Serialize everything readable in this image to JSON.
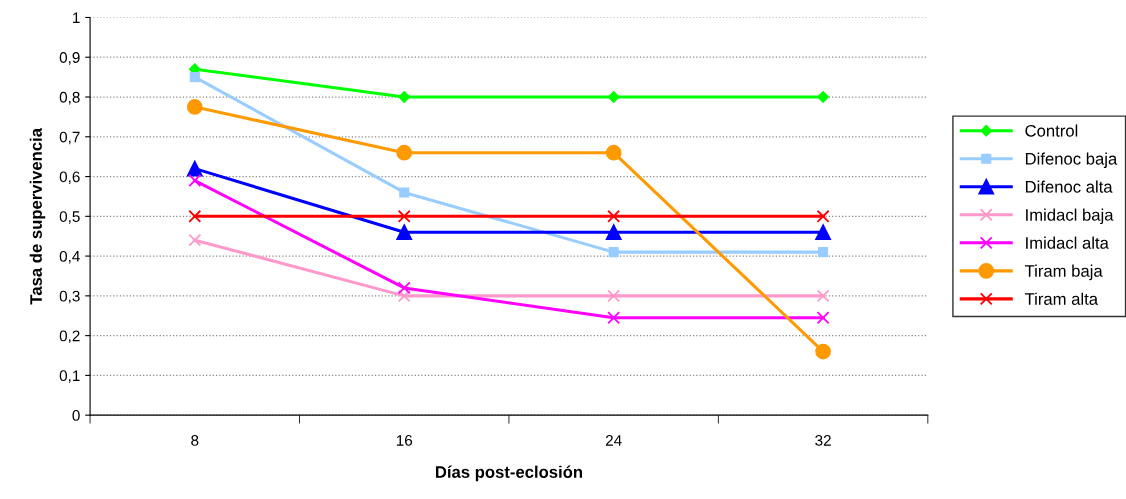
{
  "chart_data": {
    "type": "line",
    "xlabel": "Días post-eclosión",
    "ylabel": "Tasa de supervivencia",
    "categories": [
      "8",
      "16",
      "24",
      "32"
    ],
    "series": [
      {
        "name": "Control",
        "color": "#00ff00",
        "marker": "diamond",
        "values": [
          0.87,
          0.8,
          0.8,
          0.8
        ]
      },
      {
        "name": "Difenoc baja",
        "color": "#99ccff",
        "marker": "square",
        "values": [
          0.85,
          0.56,
          0.41,
          0.41
        ]
      },
      {
        "name": "Difenoc alta",
        "color": "#0000ff",
        "marker": "triangle",
        "values": [
          0.62,
          0.46,
          0.46,
          0.46
        ]
      },
      {
        "name": "Imidacl baja",
        "color": "#ff99cc",
        "marker": "cross",
        "values": [
          0.44,
          0.3,
          0.3,
          0.3
        ]
      },
      {
        "name": "Imidacl alta",
        "color": "#ff00ff",
        "marker": "cross",
        "values": [
          0.59,
          0.32,
          0.245,
          0.245
        ]
      },
      {
        "name": "Tiram baja",
        "color": "#ff9900",
        "marker": "circle",
        "values": [
          0.775,
          0.66,
          0.66,
          0.16
        ]
      },
      {
        "name": "Tiram alta",
        "color": "#ff0000",
        "marker": "cross",
        "values": [
          0.5,
          0.5,
          0.5,
          0.5
        ]
      }
    ],
    "ylim": [
      0,
      1
    ],
    "yticks": [
      0,
      {
        "value": 0.1,
        "label": "0,1"
      },
      {
        "value": 0.2,
        "label": "0,2"
      },
      {
        "value": 0.3,
        "label": "0,3"
      },
      {
        "value": 0.4,
        "label": "0,4"
      },
      {
        "value": 0.5,
        "label": "0,5"
      },
      {
        "value": 0.6,
        "label": "0,6"
      },
      {
        "value": 0.7,
        "label": "0,7"
      },
      {
        "value": 0.8,
        "label": "0,8"
      },
      {
        "value": 0.9,
        "label": "0,9"
      },
      1
    ],
    "grid": "y",
    "legend": "right",
    "line_style": "solid"
  }
}
